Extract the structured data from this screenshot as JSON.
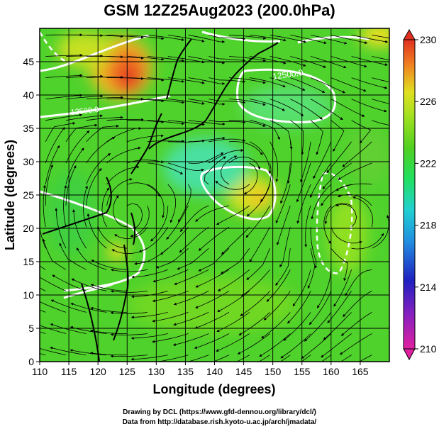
{
  "title": "GSM 12Z25Aug2023 (200.0hPa)",
  "x_axis": {
    "label": "Longitude (degrees)",
    "ticks": [
      "110",
      "115",
      "120",
      "125",
      "130",
      "135",
      "140",
      "145",
      "150",
      "155",
      "160",
      "165"
    ]
  },
  "y_axis": {
    "label": "Latitude  (degrees)",
    "ticks": [
      "0",
      "5",
      "10",
      "15",
      "20",
      "25",
      "30",
      "35",
      "40",
      "45"
    ]
  },
  "colorbar": {
    "ticks": [
      "230",
      "226",
      "222",
      "218",
      "214",
      "210"
    ],
    "min": 210,
    "max": 230
  },
  "contour_labels": [
    "12500.0",
    "12500.0"
  ],
  "credits": {
    "line1": "Drawing by DCL (https://www.gfd-dennou.org/library/dcl/)",
    "line2": "Data from http://database.rish.kyoto-u.ac.jp/arch/jmadata/"
  },
  "chart_data": {
    "type": "heatmap",
    "title": "GSM 12Z25Aug2023 (200.0hPa)",
    "xlabel": "Longitude (degrees)",
    "ylabel": "Latitude  (degrees)",
    "xlim": [
      110,
      170
    ],
    "ylim": [
      0,
      50
    ],
    "color_range": [
      210,
      230
    ],
    "colors": [
      "#e020a0",
      "#2020c0",
      "#20a0e0",
      "#20e0a0",
      "#40d020",
      "#90e020",
      "#e0e020",
      "#f08020",
      "#e03020"
    ],
    "features": [
      {
        "name": "warm core NW",
        "lon": 123,
        "lat": 44,
        "value": 229
      },
      {
        "name": "warm anticyclone",
        "lon": 148,
        "lat": 28,
        "value": 225
      },
      {
        "name": "warm spot",
        "lon": 122,
        "lat": 19,
        "value": 225
      },
      {
        "name": "warm NE corner",
        "lon": 168,
        "lat": 49,
        "value": 226
      },
      {
        "name": "cool band",
        "lon": 137,
        "lat": 32,
        "value": 220
      },
      {
        "name": "cool spot",
        "lon": 146,
        "lat": 38,
        "value": 219
      }
    ]
  }
}
